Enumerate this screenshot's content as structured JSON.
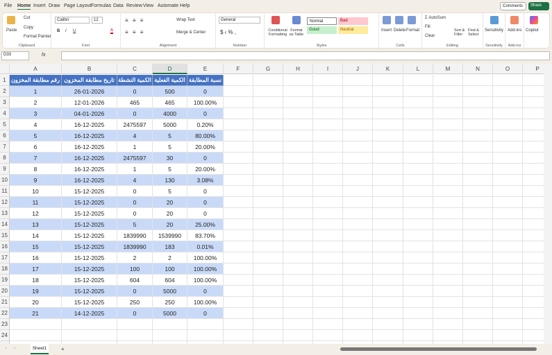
{
  "menu": [
    "File",
    "Home",
    "Insert",
    "Draw",
    "Page Layout",
    "Formulas",
    "Data",
    "Review",
    "View",
    "Automate",
    "Help"
  ],
  "actions": {
    "comments": "Comments",
    "share": "Share"
  },
  "ribbon": {
    "clipboard": {
      "paste": "Paste",
      "cut": "Cut",
      "copy": "Copy",
      "format_painter": "Format Painter",
      "label": "Clipboard"
    },
    "font": {
      "name": "Calibri",
      "size": "12",
      "label": "Font"
    },
    "alignment": {
      "wrap": "Wrap Text",
      "merge": "Merge & Center",
      "label": "Alignment"
    },
    "number": {
      "format": "General",
      "label": "Number"
    },
    "styles": {
      "conditional": "Conditional Formatting",
      "format_table": "Format as Table",
      "normal": "Normal",
      "bad": "Bad",
      "good": "Good",
      "neutral": "Neutral",
      "label": "Styles"
    },
    "cells": {
      "insert": "Insert",
      "delete": "Delete",
      "format": "Format",
      "label": "Cells"
    },
    "editing": {
      "autosum": "AutoSum",
      "fill": "Fill",
      "clear": "Clear",
      "sort": "Sort & Filter",
      "find": "Find & Select",
      "label": "Editing"
    },
    "sensitivity": {
      "button": "Sensitivity",
      "label": "Sensitivity"
    },
    "addins": {
      "button": "Add-ins",
      "label": "Add-ins"
    },
    "copilot": "Copilot"
  },
  "formula_bar": {
    "name_box": "D33",
    "fx": "fx",
    "value": ""
  },
  "columns": [
    "A",
    "B",
    "C",
    "D",
    "E",
    "F",
    "G",
    "H",
    "I",
    "J",
    "K",
    "L",
    "M",
    "N",
    "O",
    "P"
  ],
  "selected_column": "D",
  "colors": {
    "header": "#4472c4",
    "band": "#c9daf8",
    "accent": "#1e7145"
  },
  "table": {
    "headers": [
      "رقم مطابقة المخزون",
      "تاريخ مطابقة المخزون",
      "الكمية النشطة",
      "الكمية الفعلية",
      "نسبة المطابقة"
    ],
    "rows": [
      [
        "1",
        "26-01-2026",
        "0",
        "500",
        "0"
      ],
      [
        "2",
        "12-01-2026",
        "465",
        "465",
        "100.00%"
      ],
      [
        "3",
        "04-01-2026",
        "0",
        "4000",
        "0"
      ],
      [
        "4",
        "16-12-2025",
        "2475597",
        "5000",
        "0.20%"
      ],
      [
        "5",
        "16-12-2025",
        "4",
        "5",
        "80.00%"
      ],
      [
        "6",
        "16-12-2025",
        "1",
        "5",
        "20.00%"
      ],
      [
        "7",
        "16-12-2025",
        "2475597",
        "30",
        "0"
      ],
      [
        "8",
        "16-12-2025",
        "1",
        "5",
        "20.00%"
      ],
      [
        "9",
        "16-12-2025",
        "4",
        "130",
        "3.08%"
      ],
      [
        "10",
        "15-12-2025",
        "0",
        "5",
        "0"
      ],
      [
        "11",
        "15-12-2025",
        "0",
        "20",
        "0"
      ],
      [
        "12",
        "15-12-2025",
        "0",
        "20",
        "0"
      ],
      [
        "13",
        "15-12-2025",
        "5",
        "20",
        "25.00%"
      ],
      [
        "14",
        "15-12-2025",
        "1839990",
        "1539990",
        "83.70%"
      ],
      [
        "15",
        "15-12-2025",
        "1839990",
        "183",
        "0.01%"
      ],
      [
        "16",
        "15-12-2025",
        "2",
        "2",
        "100.00%"
      ],
      [
        "17",
        "15-12-2025",
        "100",
        "100",
        "100.00%"
      ],
      [
        "18",
        "15-12-2025",
        "604",
        "604",
        "100.00%"
      ],
      [
        "19",
        "15-12-2025",
        "0",
        "5000",
        "0"
      ],
      [
        "20",
        "15-12-2025",
        "250",
        "250",
        "100.00%"
      ],
      [
        "21",
        "14-12-2025",
        "0",
        "5000",
        "0"
      ]
    ]
  },
  "sheet_tabs": [
    "Sheet1"
  ],
  "add_sheet": "+"
}
